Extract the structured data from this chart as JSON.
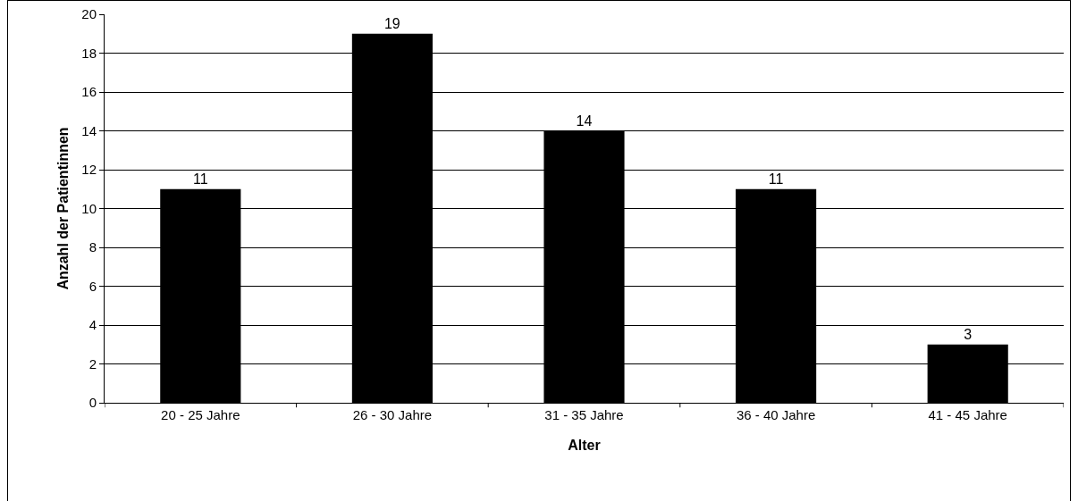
{
  "chart_data": {
    "type": "bar",
    "xlabel": "Alter",
    "ylabel": "Anzahl der Patientinnen",
    "categories": [
      "20 - 25 Jahre",
      "26 - 30 Jahre",
      "31 - 35 Jahre",
      "36 - 40 Jahre",
      "41 - 45 Jahre"
    ],
    "values": [
      11,
      19,
      14,
      11,
      3
    ],
    "color": "#000000",
    "ylim": [
      0,
      20
    ],
    "yticks": [
      0,
      2,
      4,
      6,
      8,
      10,
      12,
      14,
      16,
      18,
      20
    ],
    "grid": "y",
    "data_labels": true,
    "legend": false
  }
}
